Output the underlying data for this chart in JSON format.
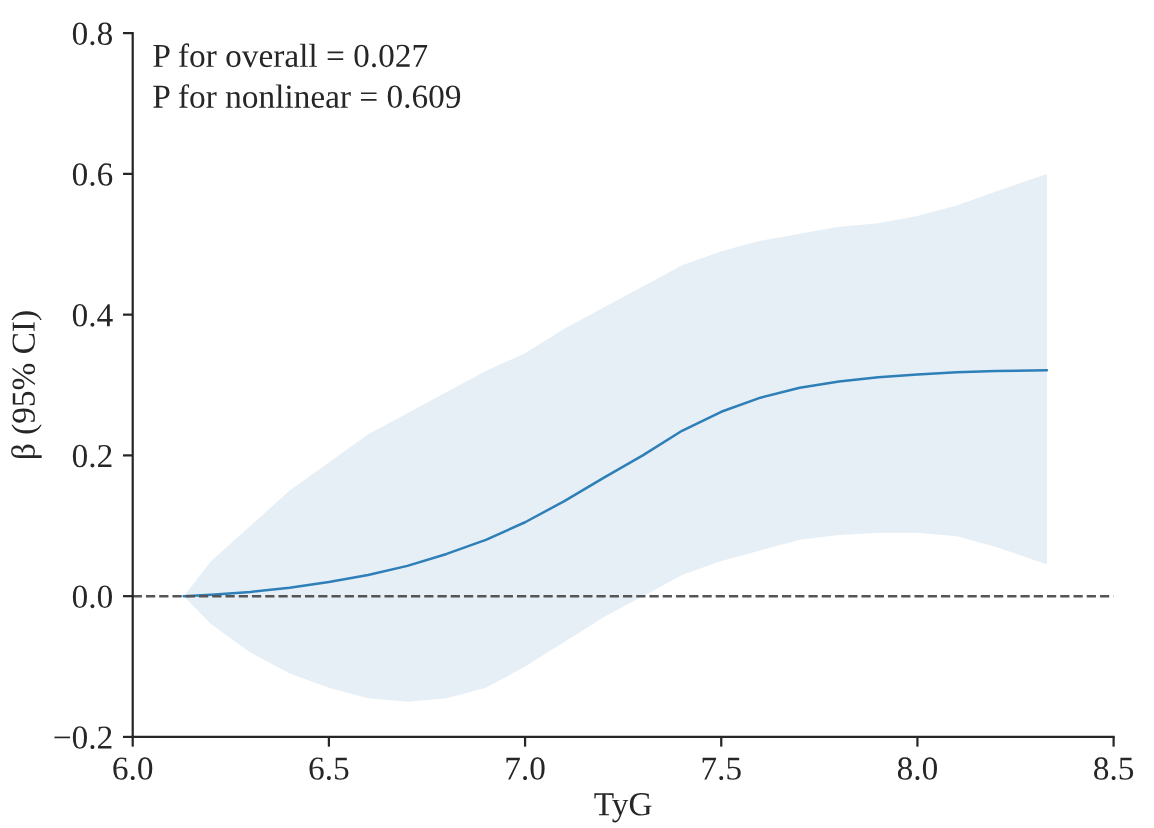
{
  "chart_data": {
    "type": "line",
    "xlabel": "TyG",
    "ylabel": "β (95% CI)",
    "annotations": [
      "P for overall = 0.027",
      "P for nonlinear = 0.609"
    ],
    "x": [
      6.13,
      6.2,
      6.3,
      6.4,
      6.5,
      6.6,
      6.7,
      6.8,
      6.9,
      7.0,
      7.1,
      7.2,
      7.3,
      7.4,
      7.5,
      7.6,
      7.7,
      7.8,
      7.9,
      8.0,
      8.1,
      8.2,
      8.33
    ],
    "series": [
      {
        "color": "#2e7fb8",
        "values": [
          0,
          0.002,
          0.006,
          0.012,
          0.02,
          0.03,
          0.043,
          0.06,
          0.08,
          0.105,
          0.135,
          0.168,
          0.2,
          0.235,
          0.262,
          0.282,
          0.296,
          0.305,
          0.311,
          0.315,
          0.318,
          0.32,
          0.321
        ],
        "upper": [
          0,
          0.05,
          0.1,
          0.15,
          0.19,
          0.23,
          0.26,
          0.29,
          0.32,
          0.345,
          0.38,
          0.41,
          0.44,
          0.47,
          0.49,
          0.505,
          0.515,
          0.525,
          0.53,
          0.54,
          0.555,
          0.575,
          0.6
        ],
        "lower": [
          0,
          -0.04,
          -0.08,
          -0.11,
          -0.13,
          -0.145,
          -0.15,
          -0.145,
          -0.13,
          -0.1,
          -0.065,
          -0.03,
          0.0,
          0.03,
          0.05,
          0.065,
          0.08,
          0.087,
          0.09,
          0.09,
          0.085,
          0.07,
          0.045
        ]
      }
    ],
    "ref_lines": [
      {
        "axis": "y",
        "value": 0,
        "color": "#555555",
        "line_style": "dashed"
      }
    ],
    "xlim": [
      6.0,
      8.5
    ],
    "xticks": [
      {
        "value": 6.0,
        "label": "6.0"
      },
      {
        "value": 6.5,
        "label": "6.5"
      },
      {
        "value": 7.0,
        "label": "7.0"
      },
      {
        "value": 7.5,
        "label": "7.5"
      },
      {
        "value": 8.0,
        "label": "8.0"
      },
      {
        "value": 8.5,
        "label": "8.5"
      }
    ],
    "ylim": [
      -0.2,
      0.8
    ],
    "yticks": [
      {
        "value": -0.2,
        "label": "−0.2"
      },
      {
        "value": 0.0,
        "label": "0.0"
      },
      {
        "value": 0.2,
        "label": "0.2"
      },
      {
        "value": 0.4,
        "label": "0.4"
      },
      {
        "value": 0.6,
        "label": "0.6"
      },
      {
        "value": 0.8,
        "label": "0.8"
      }
    ],
    "grid": false,
    "legend": false
  }
}
